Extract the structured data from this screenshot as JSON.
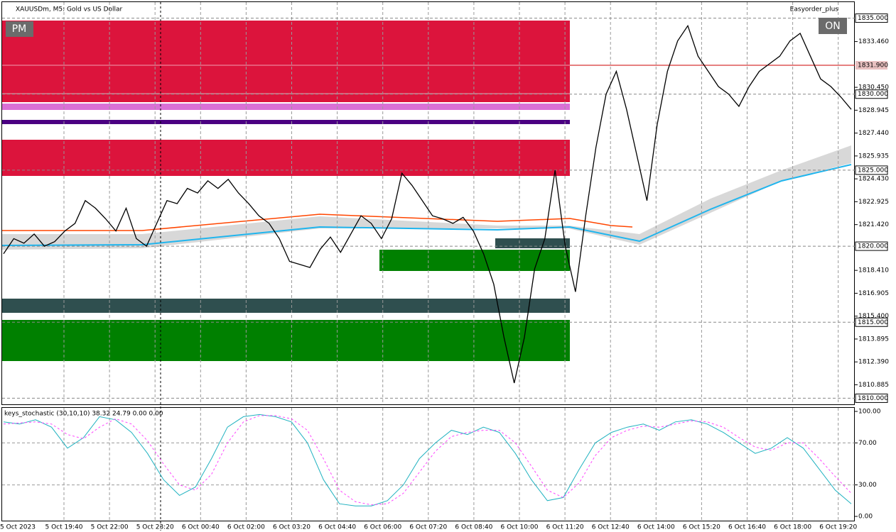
{
  "header": {
    "symbol": "XAUUSDm, M5:  Gold vs US Dollar",
    "expert": "Easyorder_plus",
    "pm_button": "PM",
    "on_button": "ON"
  },
  "price_chart": {
    "ylim": [
      1809.6,
      1836.1
    ],
    "values": [
      1819.5,
      1820.5,
      1820.2,
      1820.8,
      1820.0,
      1820.3,
      1821.0,
      1821.5,
      1823.0,
      1822.5,
      1821.8,
      1821.0,
      1822.5,
      1820.5,
      1820.0,
      1821.5,
      1823.0,
      1822.8,
      1823.8,
      1823.5,
      1824.3,
      1823.8,
      1824.4,
      1823.5,
      1822.8,
      1822.0,
      1821.5,
      1820.5,
      1819.0,
      1818.8,
      1818.6,
      1819.8,
      1820.6,
      1819.6,
      1820.8,
      1822.0,
      1821.5,
      1820.5,
      1821.8,
      1824.8,
      1824.0,
      1823.0,
      1822.0,
      1821.8,
      1821.5,
      1821.9,
      1821.0,
      1819.5,
      1817.5,
      1814.0,
      1811.0,
      1814.0,
      1818.5,
      1820.5,
      1825.0,
      1820.0,
      1817.0,
      1822.0,
      1826.5,
      1830.0,
      1831.5,
      1829.0,
      1826.0,
      1823.0,
      1828.0,
      1831.5,
      1833.5,
      1834.5,
      1832.5,
      1831.5,
      1830.5,
      1830.0,
      1829.2,
      1830.5,
      1831.5,
      1832.0,
      1832.5,
      1833.5,
      1834.0,
      1832.5,
      1831.0,
      1830.5,
      1829.8,
      1829.0
    ],
    "yticks": [
      {
        "value": 1833.46,
        "label": "1833.460"
      },
      {
        "value": 1830.45,
        "label": "1830.450"
      },
      {
        "value": 1828.945,
        "label": "1828.945"
      },
      {
        "value": 1827.44,
        "label": "1827.440"
      },
      {
        "value": 1825.935,
        "label": "1825.935"
      },
      {
        "value": 1824.43,
        "label": "1824.430"
      },
      {
        "value": 1822.925,
        "label": "1822.925"
      },
      {
        "value": 1821.42,
        "label": "1821.420"
      },
      {
        "value": 1818.41,
        "label": "1818.410"
      },
      {
        "value": 1816.905,
        "label": "1816.905"
      },
      {
        "value": 1815.4,
        "label": "1815.400"
      },
      {
        "value": 1813.895,
        "label": "1813.895"
      },
      {
        "value": 1812.39,
        "label": "1812.390"
      },
      {
        "value": 1810.885,
        "label": "1810.885"
      }
    ],
    "levels": [
      {
        "value": 1835,
        "label": "1835.000"
      },
      {
        "value": 1830,
        "label": "1830.000"
      },
      {
        "value": 1825,
        "label": "1825.000"
      },
      {
        "value": 1820,
        "label": "1820.000"
      },
      {
        "value": 1815,
        "label": "1815.000"
      },
      {
        "value": 1810,
        "label": "1810.000"
      }
    ],
    "price_line": {
      "value": 1831.9,
      "label": "1831.900"
    }
  },
  "stochastic": {
    "label": "keys_stochastic (30,10,10) 38.32 24.79 0.00 0.00",
    "ylim": [
      0,
      100
    ],
    "yticks": [
      {
        "value": 100,
        "label": "100.00"
      },
      {
        "value": 70,
        "label": "70.00"
      },
      {
        "value": 30,
        "label": "30.00"
      },
      {
        "value": 0,
        "label": "0.00"
      }
    ],
    "main": [
      90,
      88,
      92,
      85,
      65,
      75,
      95,
      92,
      80,
      60,
      35,
      20,
      28,
      55,
      85,
      95,
      97,
      95,
      90,
      70,
      35,
      12,
      10,
      10,
      15,
      30,
      55,
      70,
      82,
      78,
      85,
      80,
      60,
      35,
      15,
      18,
      45,
      70,
      80,
      85,
      88,
      82,
      90,
      92,
      88,
      80,
      70,
      60,
      65,
      75,
      65,
      45,
      25,
      12
    ],
    "signal": [
      88,
      89,
      90,
      88,
      78,
      74,
      85,
      93,
      88,
      72,
      50,
      30,
      25,
      40,
      70,
      90,
      96,
      96,
      93,
      82,
      55,
      25,
      14,
      11,
      12,
      22,
      42,
      62,
      76,
      80,
      82,
      82,
      70,
      48,
      25,
      18,
      32,
      58,
      75,
      82,
      86,
      85,
      88,
      91,
      90,
      85,
      75,
      66,
      63,
      70,
      70,
      55,
      38,
      22
    ]
  },
  "time_axis": {
    "labels": [
      "5 Oct 2023",
      "5 Oct 19:40",
      "5 Oct 22:00",
      "5 Oct 23:20",
      "6 Oct 00:40",
      "6 Oct 02:00",
      "6 Oct 03:20",
      "6 Oct 04:40",
      "6 Oct 06:00",
      "6 Oct 07:20",
      "6 Oct 08:40",
      "6 Oct 10:00",
      "6 Oct 11:20",
      "6 Oct 12:40",
      "6 Oct 14:00",
      "6 Oct 15:20",
      "6 Oct 16:40",
      "6 Oct 18:00",
      "6 Oct 19:20"
    ]
  }
}
